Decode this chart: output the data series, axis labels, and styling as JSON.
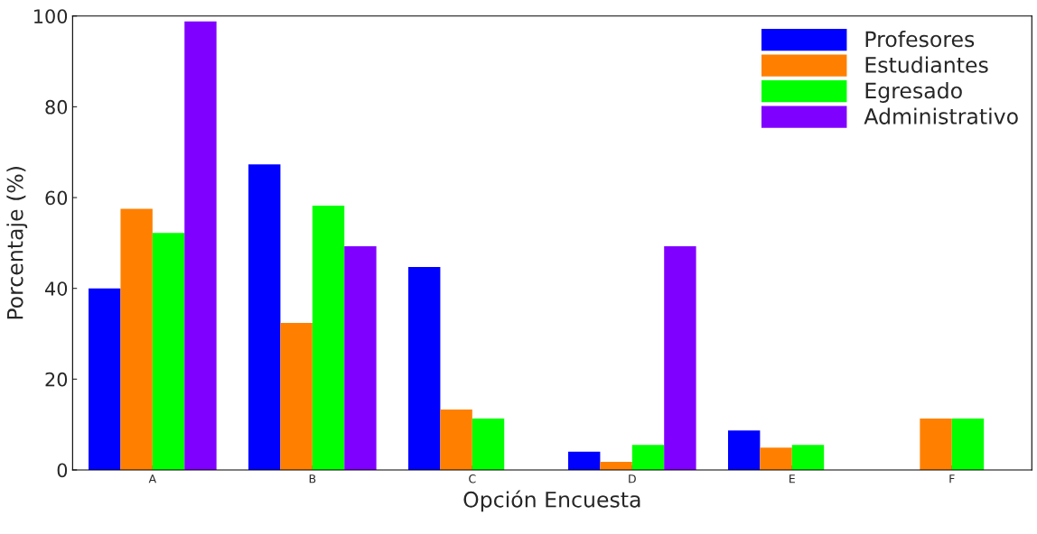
{
  "chart_data": {
    "type": "bar",
    "xlabel": "Opción Encuesta",
    "ylabel": "Porcentaje (%)",
    "categories": [
      "A",
      "B",
      "C",
      "D",
      "E",
      "F"
    ],
    "series": [
      {
        "name": "Profesores",
        "color": "#0000ff",
        "values": [
          40,
          67.3,
          44.7,
          4,
          8.7,
          null
        ]
      },
      {
        "name": "Estudiantes",
        "color": "#ff8000",
        "values": [
          57.5,
          32.4,
          13.3,
          1.8,
          4.9,
          11.3
        ]
      },
      {
        "name": "Egresado",
        "color": "#00ff00",
        "values": [
          52.2,
          58.2,
          11.3,
          5.5,
          5.5,
          11.3
        ]
      },
      {
        "name": "Administrativo",
        "color": "#8000ff",
        "values": [
          98.8,
          49.3,
          null,
          49.3,
          null,
          null
        ]
      }
    ],
    "ylim": [
      0,
      100
    ],
    "yticks": [
      0,
      20,
      40,
      60,
      80,
      100
    ],
    "grid": false,
    "legend": "top right"
  }
}
